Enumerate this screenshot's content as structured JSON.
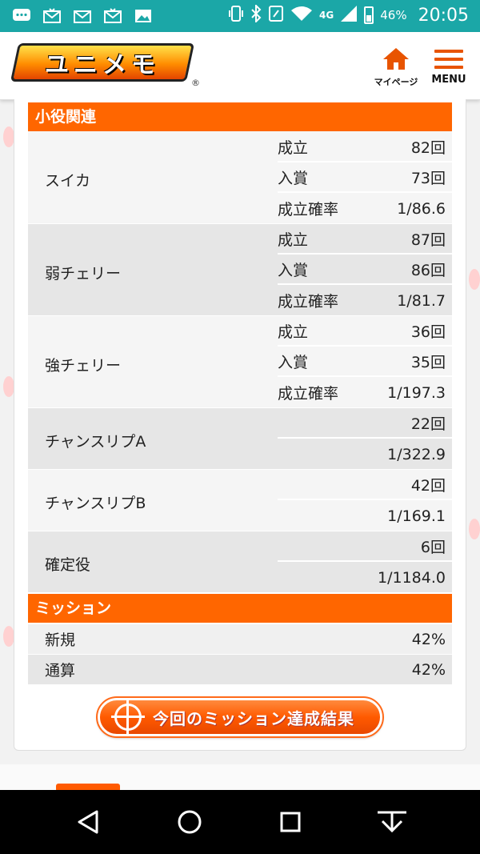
{
  "status_bar": {
    "signal_label": "4G",
    "battery": "46%",
    "time": "20:05",
    "left_icons": [
      "chat-bubble-icon",
      "mail-icon",
      "mail-icon",
      "mail-icon",
      "image-icon"
    ]
  },
  "header": {
    "logo_text": "ユニメモ",
    "logo_reg": "®",
    "mypage_label": "マイページ",
    "menu_label": "MENU"
  },
  "small_roles": {
    "title": "小役関連",
    "groups": [
      {
        "label": "スイカ",
        "rows": [
          {
            "k": "成立",
            "v": "82回"
          },
          {
            "k": "入賞",
            "v": "73回"
          },
          {
            "k": "成立確率",
            "v": "1/86.6"
          }
        ]
      },
      {
        "label": "弱チェリー",
        "rows": [
          {
            "k": "成立",
            "v": "87回"
          },
          {
            "k": "入賞",
            "v": "86回"
          },
          {
            "k": "成立確率",
            "v": "1/81.7"
          }
        ]
      },
      {
        "label": "強チェリー",
        "rows": [
          {
            "k": "成立",
            "v": "36回"
          },
          {
            "k": "入賞",
            "v": "35回"
          },
          {
            "k": "成立確率",
            "v": "1/197.3"
          }
        ]
      },
      {
        "label": "チャンスリプA",
        "rows": [
          {
            "k": "",
            "v": "22回"
          },
          {
            "k": "",
            "v": "1/322.9"
          }
        ]
      },
      {
        "label": "チャンスリプB",
        "rows": [
          {
            "k": "",
            "v": "42回"
          },
          {
            "k": "",
            "v": "1/169.1"
          }
        ]
      },
      {
        "label": "確定役",
        "rows": [
          {
            "k": "",
            "v": "6回"
          },
          {
            "k": "",
            "v": "1/1184.0"
          }
        ]
      }
    ]
  },
  "mission": {
    "title": "ミッション",
    "rows": [
      {
        "k": "新規",
        "v": "42%"
      },
      {
        "k": "通算",
        "v": "42%"
      }
    ]
  },
  "result_button": {
    "label": "今回のミッション達成結果"
  },
  "colors": {
    "accent": "#ff6600",
    "status_bar": "#1ba7a7",
    "row_shade": "#e6e6e6"
  }
}
